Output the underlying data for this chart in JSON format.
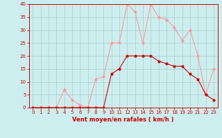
{
  "x": [
    0,
    1,
    2,
    3,
    4,
    5,
    6,
    7,
    8,
    9,
    10,
    11,
    12,
    13,
    14,
    15,
    16,
    17,
    18,
    19,
    20,
    21,
    22,
    23
  ],
  "y_mean": [
    0,
    0,
    0,
    0,
    0,
    0,
    0,
    0,
    0,
    0,
    13,
    15,
    20,
    20,
    20,
    20,
    18,
    17,
    16,
    16,
    13,
    11,
    5,
    3
  ],
  "y_gust": [
    0,
    0,
    0,
    0,
    7,
    3,
    1,
    0,
    11,
    12,
    25,
    25,
    40,
    37,
    25,
    40,
    35,
    34,
    31,
    26,
    30,
    20,
    5,
    15
  ],
  "xlim": [
    -0.5,
    23.5
  ],
  "ylim": [
    0,
    40
  ],
  "yticks": [
    0,
    5,
    10,
    15,
    20,
    25,
    30,
    35,
    40
  ],
  "xticks": [
    0,
    1,
    2,
    3,
    4,
    5,
    6,
    7,
    8,
    9,
    10,
    11,
    12,
    13,
    14,
    15,
    16,
    17,
    18,
    19,
    20,
    21,
    22,
    23
  ],
  "xlabel": "Vent moyen/en rafales ( km/h )",
  "color_mean": "#cc0000",
  "color_gust": "#ff9999",
  "bg_color": "#cceeee",
  "grid_color": "#aacccc",
  "axis_color": "#cc0000",
  "tick_color": "#cc0000",
  "label_color": "#cc0000"
}
